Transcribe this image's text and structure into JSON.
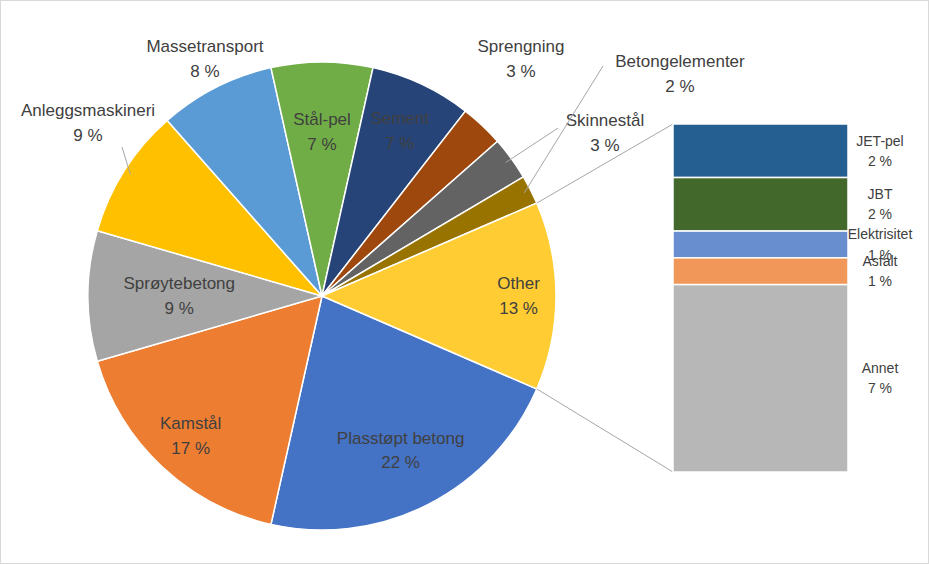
{
  "chart_data": {
    "type": "pie",
    "categories": [
      "Plasstøpt betong",
      "Kamstål",
      "Sprøytebetong",
      "Anleggsmaskineri",
      "Massetransport",
      "Stål-pel",
      "Sement",
      "Sprengning",
      "Skinnestål",
      "Betongelementer",
      "Other"
    ],
    "values": [
      22,
      17,
      9,
      9,
      8,
      7,
      7,
      3,
      3,
      2,
      13
    ],
    "value_labels": [
      "22 %",
      "17 %",
      "9 %",
      "9 %",
      "8 %",
      "7 %",
      "7 %",
      "3 %",
      "3 %",
      "2 %",
      "13 %"
    ],
    "colors": [
      "#4472c4",
      "#ed7d31",
      "#a5a5a5",
      "#ffc000",
      "#5b9bd5",
      "#70ad47",
      "#264478",
      "#9e480e",
      "#636363",
      "#997300",
      "#ffcd33"
    ],
    "data_labels": true,
    "breakdown": {
      "stacked": true,
      "categories": [
        "JET-pel",
        "JBT",
        "Elektrisitet",
        "Asfalt",
        "Annet"
      ],
      "values": [
        2,
        2,
        1,
        1,
        7
      ],
      "value_labels": [
        "2 %",
        "2 %",
        "1 %",
        "1 %",
        "7 %"
      ],
      "colors": [
        "#255e91",
        "#43682b",
        "#698ed0",
        "#f1975a",
        "#b7b7b7"
      ]
    }
  }
}
